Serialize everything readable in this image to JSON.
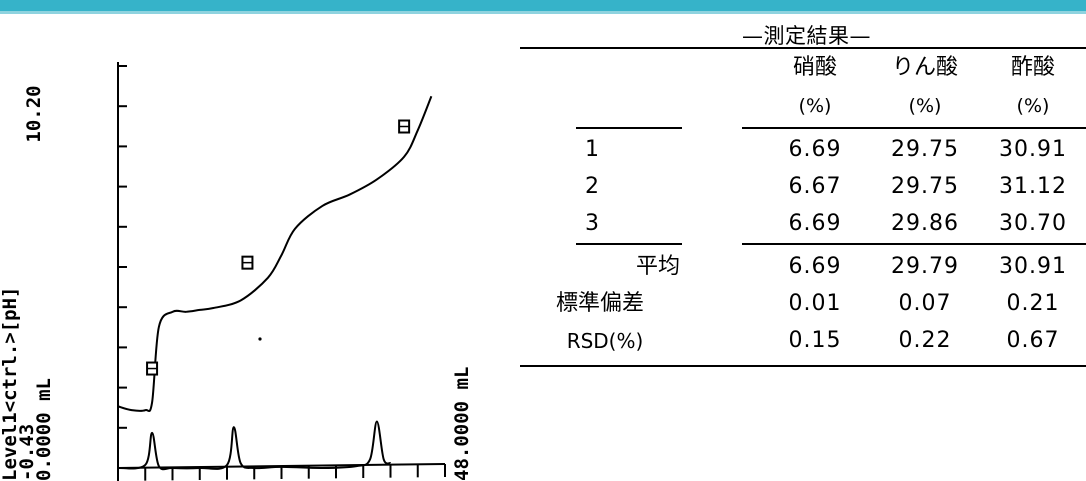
{
  "colors": {
    "top_bar": "#36b3c9"
  },
  "chart_data": {
    "type": "line",
    "y_axis_label": "Level1<ctrl.>[pH]",
    "y_max_label": "10.20",
    "y_min_label": "-0.43",
    "x_min_label": "0.0000 mL",
    "x_max_label": "48.0000 mL",
    "xlim": [
      0,
      48
    ],
    "ylim": [
      -0.43,
      10.2
    ],
    "series": [
      {
        "x": [
          0,
          2,
          4,
          5,
          6,
          8,
          10,
          12,
          14,
          18,
          22,
          24,
          26,
          30,
          34,
          38,
          42,
          44,
          46
        ],
        "y": [
          1.2,
          1.1,
          1.1,
          1.3,
          3.3,
          3.7,
          3.7,
          3.75,
          3.8,
          4.0,
          4.6,
          5.2,
          5.9,
          6.5,
          6.8,
          7.2,
          7.8,
          8.5,
          9.4
        ]
      },
      {
        "x": [
          0,
          4,
          5,
          6,
          8,
          12,
          16,
          17,
          18,
          20,
          24,
          30,
          35,
          37,
          38,
          39,
          40
        ],
        "y": [
          -0.43,
          -0.35,
          0.5,
          -0.38,
          -0.43,
          -0.43,
          -0.35,
          0.65,
          -0.3,
          -0.43,
          -0.4,
          -0.43,
          -0.38,
          -0.2,
          0.8,
          -0.2,
          -0.3
        ]
      }
    ],
    "markers": [
      {
        "x": 5,
        "y": 2.2
      },
      {
        "x": 19,
        "y": 5.0
      },
      {
        "x": 42,
        "y": 8.6
      }
    ]
  },
  "results": {
    "title": "—測定結果—",
    "headers": [
      {
        "name": "硝酸",
        "unit": "(%)"
      },
      {
        "name": "りん酸",
        "unit": "(%)"
      },
      {
        "name": "酢酸",
        "unit": "(%)"
      }
    ],
    "rows": [
      {
        "label": "1",
        "values": [
          "6.69",
          "29.75",
          "30.91"
        ]
      },
      {
        "label": "2",
        "values": [
          "6.67",
          "29.75",
          "31.12"
        ]
      },
      {
        "label": "3",
        "values": [
          "6.69",
          "29.86",
          "30.70"
        ]
      }
    ],
    "stats": [
      {
        "label": "平均",
        "values": [
          "6.69",
          "29.79",
          "30.91"
        ]
      },
      {
        "label": "標準偏差",
        "values": [
          "0.01",
          "0.07",
          "0.21"
        ]
      },
      {
        "label": "RSD(%)",
        "values": [
          "0.15",
          "0.22",
          "0.67"
        ]
      }
    ]
  }
}
